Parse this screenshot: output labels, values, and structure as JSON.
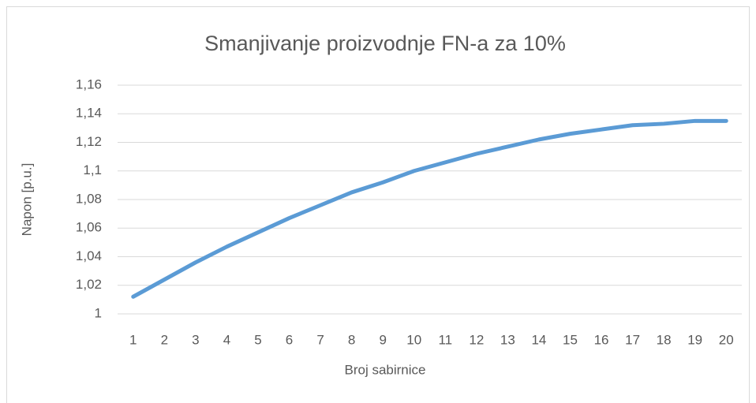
{
  "chart_data": {
    "type": "line",
    "title": "Smanjivanje proizvodnje FN-a za 10%",
    "x_label": "Broj sabirnice",
    "y_label": "Napon [p.u.]",
    "categories": [
      "1",
      "2",
      "3",
      "4",
      "5",
      "6",
      "7",
      "8",
      "9",
      "10",
      "11",
      "12",
      "13",
      "14",
      "15",
      "16",
      "17",
      "18",
      "19",
      "20"
    ],
    "series": [
      {
        "name": "Napon",
        "color": "#5b9bd5",
        "values": [
          1.012,
          1.024,
          1.036,
          1.047,
          1.057,
          1.067,
          1.076,
          1.085,
          1.092,
          1.1,
          1.106,
          1.112,
          1.117,
          1.122,
          1.126,
          1.129,
          1.132,
          1.133,
          1.135,
          1.135
        ]
      }
    ],
    "ylim": [
      1,
      1.16
    ],
    "yticks": [
      1,
      {
        "value": 1.02,
        "label": "1,02"
      },
      {
        "value": 1.04,
        "label": "1,04"
      },
      {
        "value": 1.06,
        "label": "1,06"
      },
      {
        "value": 1.08,
        "label": "1,08"
      },
      {
        "value": 1.1,
        "label": "1,1"
      },
      {
        "value": 1.12,
        "label": "1,12"
      },
      {
        "value": 1.14,
        "label": "1,14"
      },
      {
        "value": 1.16,
        "label": "1,16"
      }
    ],
    "grid": true
  }
}
